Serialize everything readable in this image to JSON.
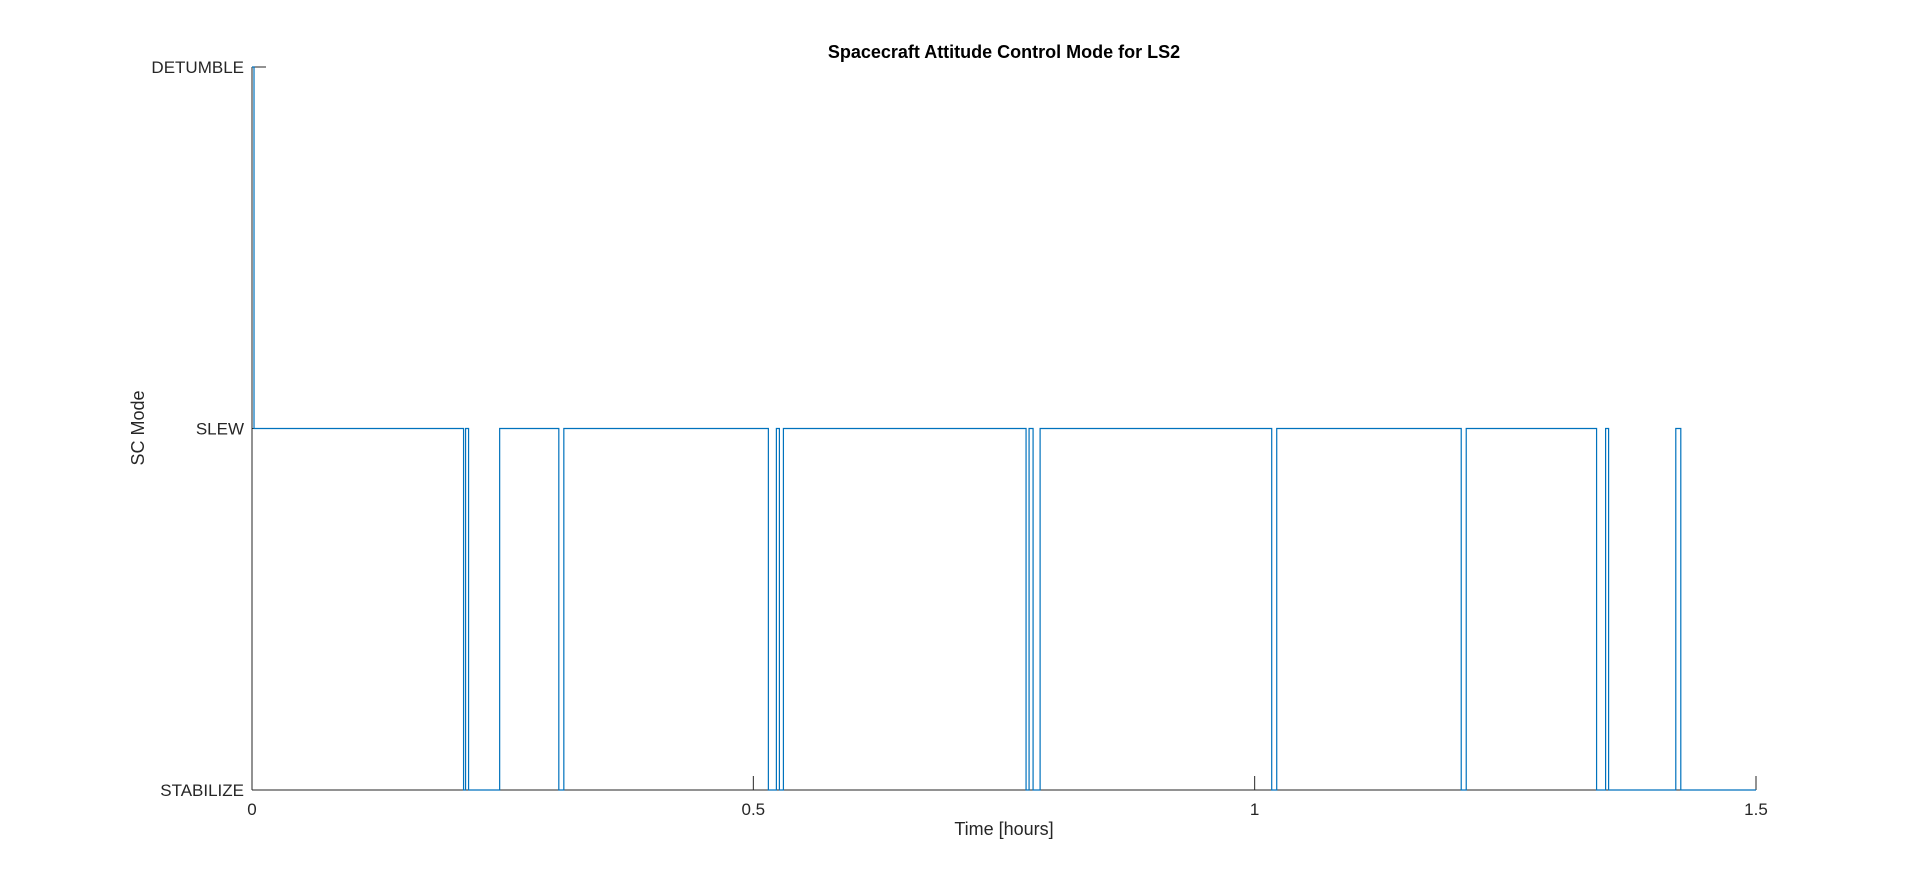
{
  "chart_data": {
    "type": "line",
    "title": "Spacecraft Attitude Control Mode for LS2",
    "xlabel": "Time [hours]",
    "ylabel": "SC Mode",
    "xlim": [
      0,
      1.5
    ],
    "ylim": [
      0,
      2
    ],
    "x_ticks": [
      {
        "value": 0,
        "label": "0"
      },
      {
        "value": 0.5,
        "label": "0.5"
      },
      {
        "value": 1,
        "label": "1"
      },
      {
        "value": 1.5,
        "label": "1.5"
      }
    ],
    "y_ticks": [
      {
        "value": 0,
        "label": "STABILIZE"
      },
      {
        "value": 1,
        "label": "SLEW"
      },
      {
        "value": 2,
        "label": "DETUMBLE"
      }
    ],
    "grid": false,
    "line_color": "#0072BD",
    "series": [
      {
        "x": [
          0,
          0.002,
          0.002,
          0.211,
          0.211,
          0.213,
          0.213,
          0.216,
          0.216,
          0.247,
          0.247,
          0.306,
          0.306,
          0.311,
          0.311,
          0.515,
          0.515,
          0.523,
          0.523,
          0.526,
          0.526,
          0.53,
          0.53,
          0.772,
          0.772,
          0.775,
          0.775,
          0.779,
          0.779,
          0.786,
          0.786,
          1.017,
          1.017,
          1.022,
          1.022,
          1.206,
          1.206,
          1.211,
          1.211,
          1.341,
          1.341,
          1.35,
          1.35,
          1.353,
          1.353,
          1.42,
          1.42,
          1.425,
          1.425,
          1.5
        ],
        "y": [
          2,
          2,
          1,
          1,
          0,
          0,
          1,
          1,
          0,
          0,
          1,
          1,
          0,
          0,
          1,
          1,
          0,
          0,
          1,
          1,
          0,
          0,
          1,
          1,
          0,
          0,
          1,
          1,
          0,
          0,
          1,
          1,
          0,
          0,
          1,
          1,
          0,
          0,
          1,
          1,
          0,
          0,
          1,
          1,
          0,
          0,
          1,
          1,
          0,
          0
        ]
      }
    ]
  }
}
